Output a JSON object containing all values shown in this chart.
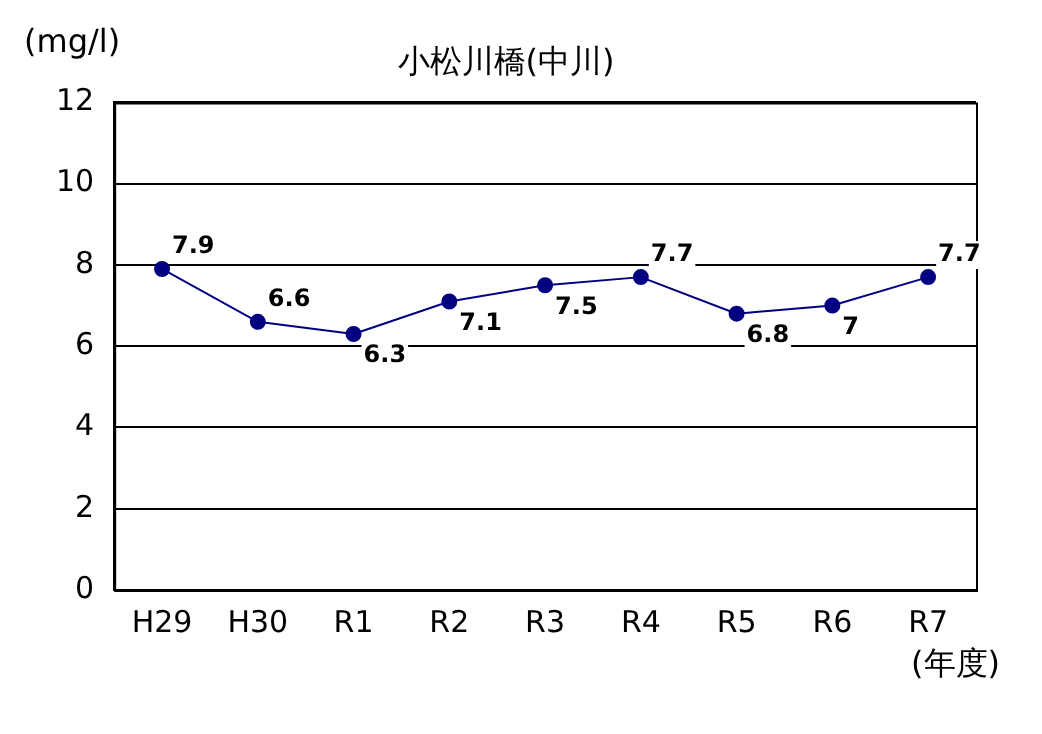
{
  "chart_data": {
    "type": "line",
    "title": "小松川橋(中川)",
    "ylabel": "(mg/l)",
    "xlabel": "(年度)",
    "categories": [
      "H29",
      "H30",
      "R1",
      "R2",
      "R3",
      "R4",
      "R5",
      "R6",
      "R7"
    ],
    "series": [
      {
        "color": "#000080",
        "values": [
          7.9,
          6.6,
          6.3,
          7.1,
          7.5,
          7.7,
          6.8,
          7,
          7.7
        ]
      }
    ],
    "ylim": [
      0,
      12
    ],
    "yticks": [
      0,
      2,
      4,
      6,
      8,
      10,
      12
    ],
    "grid": "y",
    "legend": false,
    "marker": "circle",
    "line_style": "solid",
    "data_labels": true
  }
}
